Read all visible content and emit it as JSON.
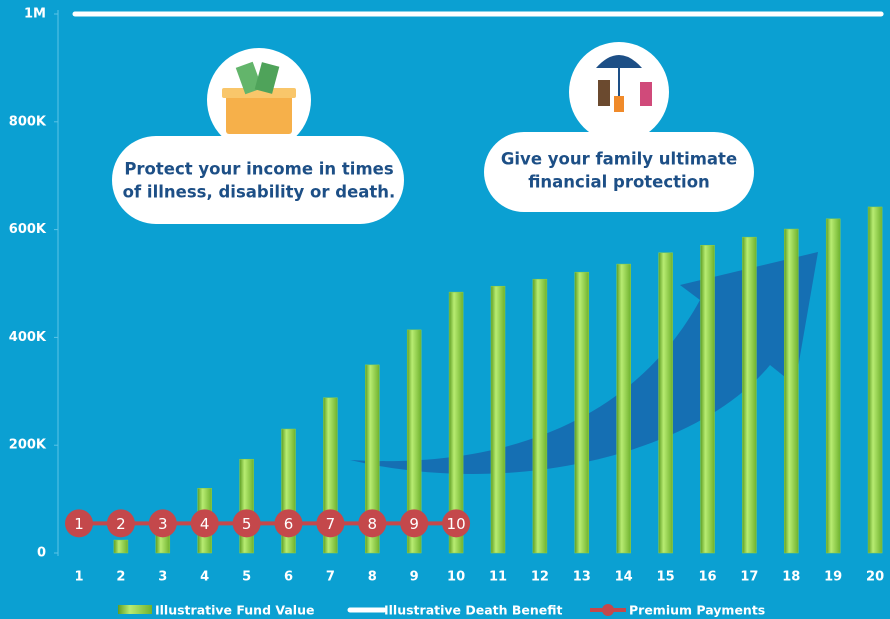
{
  "chart_data": {
    "type": "bar",
    "categories": [
      "1",
      "2",
      "3",
      "4",
      "5",
      "6",
      "7",
      "8",
      "9",
      "10",
      "11",
      "12",
      "13",
      "14",
      "15",
      "16",
      "17",
      "18",
      "19",
      "20"
    ],
    "series": [
      {
        "name": "Illustrative Fund Value",
        "type": "bar",
        "color": "#8ed14a",
        "values": [
          0,
          24000,
          40000,
          120000,
          174000,
          230000,
          288000,
          349000,
          414000,
          484000,
          495000,
          508000,
          521000,
          536000,
          557000,
          571000,
          586000,
          601000,
          620000,
          642000
        ]
      },
      {
        "name": "Illustrative Death Benefit",
        "type": "line",
        "color": "#ffffff",
        "values": [
          1000000,
          1000000,
          1000000,
          1000000,
          1000000,
          1000000,
          1000000,
          1000000,
          1000000,
          1000000,
          1000000,
          1000000,
          1000000,
          1000000,
          1000000,
          1000000,
          1000000,
          1000000,
          1000000,
          1000000
        ]
      },
      {
        "name": "Premium Payments",
        "type": "line",
        "color": "#c4484b",
        "values": [
          55000,
          55000,
          55000,
          55000,
          55000,
          55000,
          55000,
          55000,
          55000,
          55000,
          null,
          null,
          null,
          null,
          null,
          null,
          null,
          null,
          null,
          null
        ],
        "value_labels": [
          "1",
          "2",
          "3",
          "4",
          "5",
          "6",
          "7",
          "8",
          "9",
          "10",
          null,
          null,
          null,
          null,
          null,
          null,
          null,
          null,
          null,
          null
        ]
      }
    ],
    "ylim": [
      0,
      1000000
    ],
    "yticks": [
      0,
      {
        "value": 200000,
        "label": "200K"
      },
      {
        "value": 400000,
        "label": "400K"
      },
      {
        "value": 600000,
        "label": "600K"
      },
      {
        "value": 800000,
        "label": "800K"
      },
      {
        "value": 1000000,
        "label": "1M"
      }
    ],
    "annotations": [
      [
        "Protect your income in times",
        "of illness, disability or death."
      ],
      [
        "Give your family ultimate",
        "financial protection"
      ]
    ]
  }
}
